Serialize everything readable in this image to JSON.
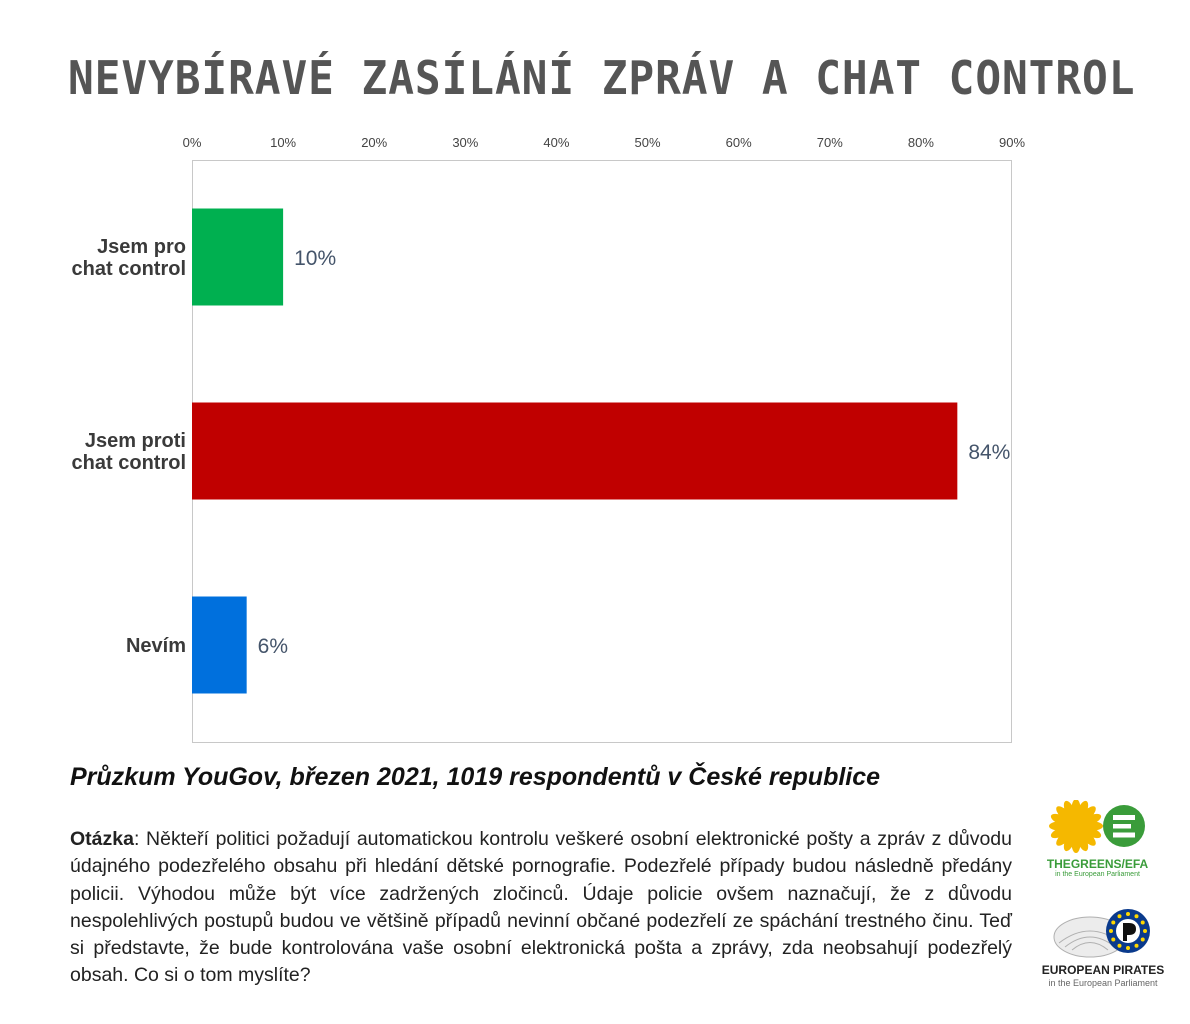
{
  "title": "NEVYBÍRAVÉ ZASÍLÁNÍ ZPRÁV A CHAT CONTROL",
  "subtitle": "Průzkum YouGov, březen 2021, 1019 respondentů v České republice",
  "question": {
    "label": "Otázka",
    "text": ": Někteří politici požadují automatickou kontrolu veškeré osobní elektronické pošty a zpráv z důvodu údajného podezřelého obsahu při hledání dětské pornografie. Podezřelé případy budou následně předány policii. Výhodou může být více zadržených zločinců. Údaje policie ovšem naznačují, že z důvodu nespolehlivých postupů budou ve většině případů nevinní občané podezřelí ze spáchání trestného činu. Teď si představte, že bude kontrolována vaše osobní elektronická pošta a zprávy, zda neobsahují podezřelý obsah. Co si o tom myslíte?"
  },
  "logos": {
    "greens": {
      "text": "THEGREENS/EFA",
      "sub": "in the European Parliament",
      "color": "#3a9c3a",
      "sun_color": "#f5b800"
    },
    "pirates": {
      "text": "EUROPEAN PIRATES",
      "sub": "in the European Parliament"
    }
  },
  "chart_data": {
    "type": "bar",
    "orientation": "horizontal",
    "categories": [
      [
        "Jsem pro",
        "chat control"
      ],
      [
        "Jsem proti",
        "chat control"
      ],
      [
        "Nevím"
      ]
    ],
    "values": [
      10,
      84,
      6
    ],
    "value_labels": [
      "10%",
      "84%",
      "6%"
    ],
    "colors": [
      "#00b050",
      "#c00000",
      "#0070dd"
    ],
    "xlim": [
      0,
      90
    ],
    "xticks": [
      0,
      10,
      20,
      30,
      40,
      50,
      60,
      70,
      80,
      90
    ],
    "xtick_labels": [
      "0%",
      "10%",
      "20%",
      "30%",
      "40%",
      "50%",
      "60%",
      "70%",
      "80%",
      "90%"
    ],
    "xaxis_position": "top",
    "grid": false
  }
}
